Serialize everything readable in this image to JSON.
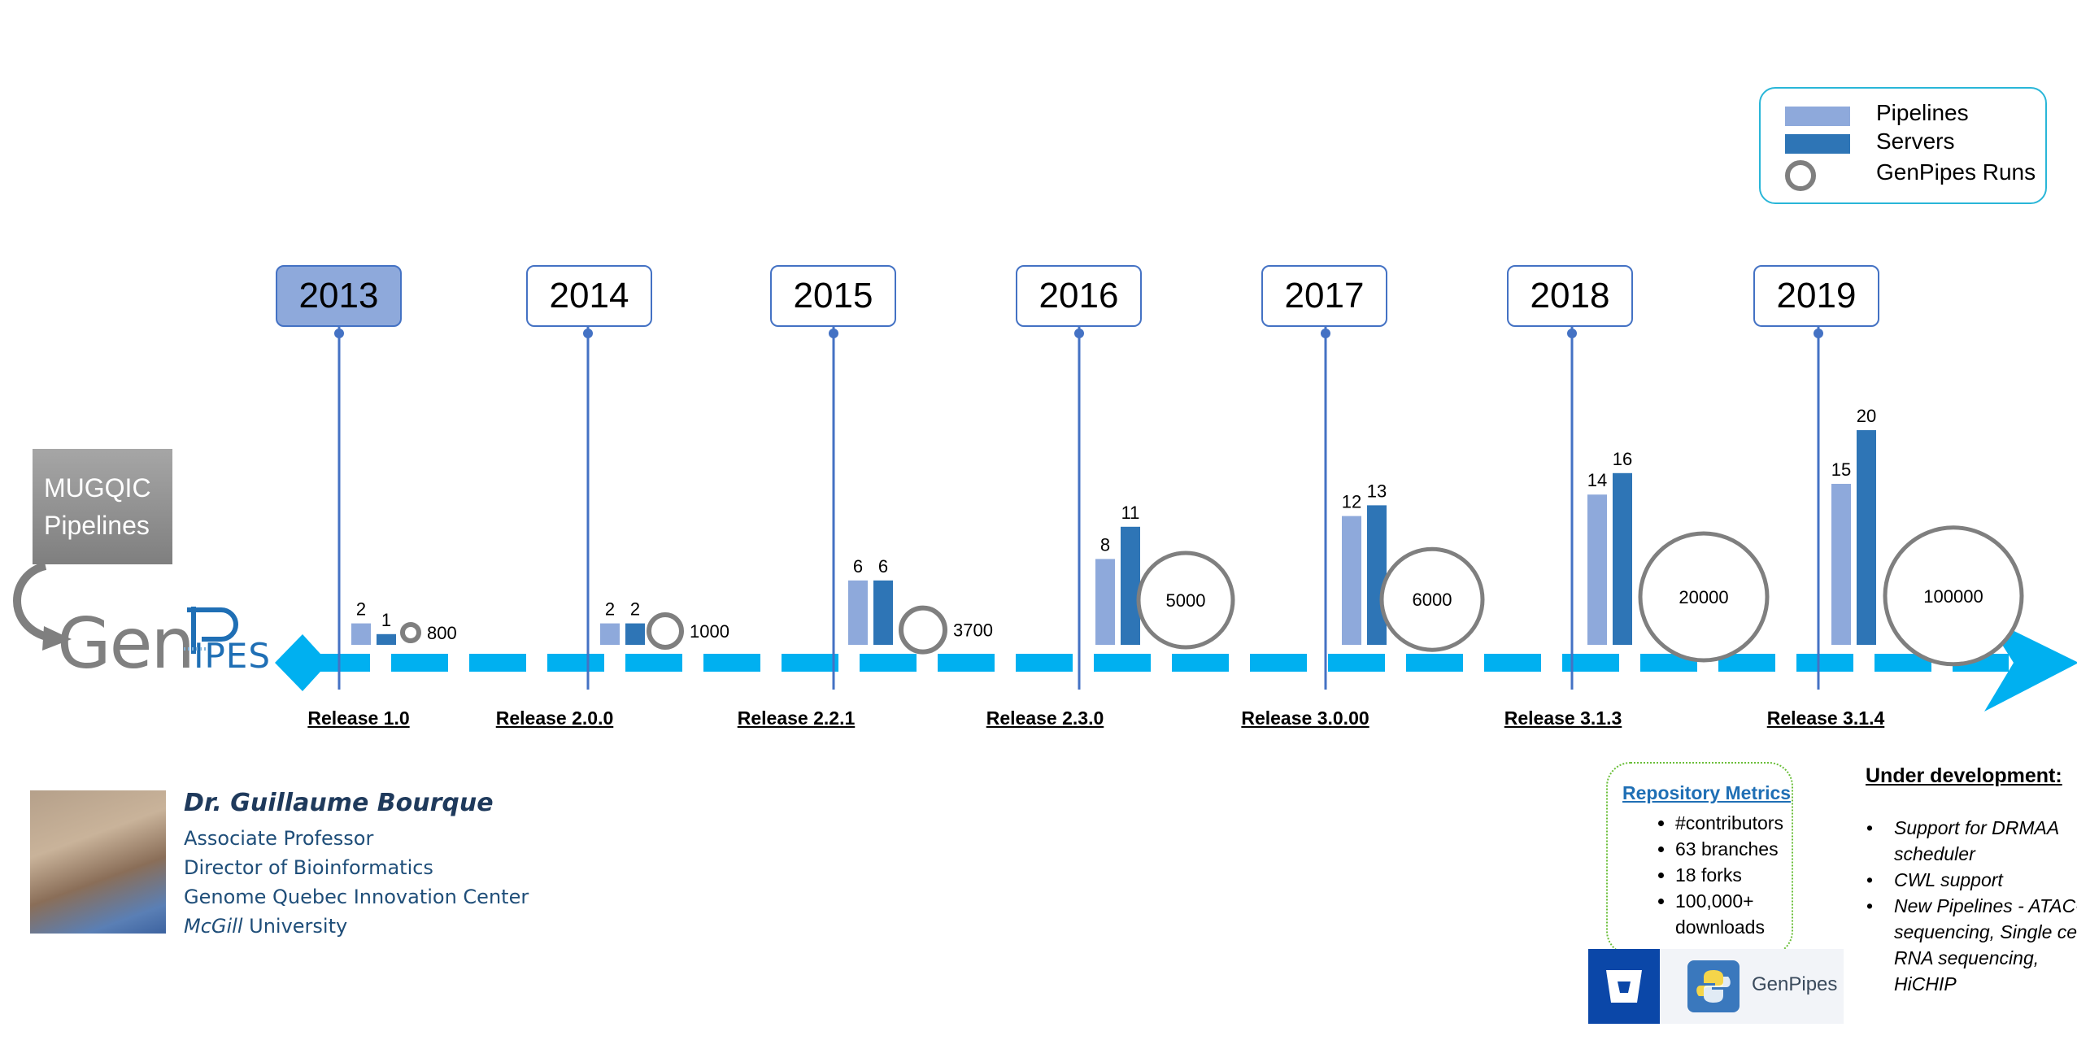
{
  "legend": {
    "pipelines_label": "Pipelines",
    "servers_label": "Servers",
    "runs_label": "GenPipes Runs",
    "pipelines_color": "#8ea9db",
    "servers_color": "#2e75b6",
    "runs_color": "#7f7f7f"
  },
  "mugqic": {
    "line1": "MUGQIC",
    "line2": "Pipelines"
  },
  "logo": {
    "gen": "Gen",
    "ipes": "IPES"
  },
  "timeline_color": "#00b0f0",
  "chart_data": {
    "type": "bar",
    "categories": [
      "2013",
      "2014",
      "2015",
      "2016",
      "2017",
      "2018",
      "2019"
    ],
    "releases": [
      "Release 1.0",
      "Release 2.0.0",
      "Release 2.2.1",
      "Release 2.3.0",
      "Release 3.0.00",
      "Release 3.1.3",
      "Release 3.1.4"
    ],
    "series": [
      {
        "name": "Pipelines",
        "values": [
          2,
          2,
          6,
          8,
          12,
          14,
          15
        ]
      },
      {
        "name": "Servers",
        "values": [
          1,
          2,
          6,
          11,
          13,
          16,
          20
        ]
      },
      {
        "name": "GenPipes Runs",
        "values": [
          800,
          1000,
          3700,
          5000,
          6000,
          20000,
          100000
        ]
      }
    ],
    "highlighted_year": "2013"
  },
  "profile": {
    "name": "Dr. Guillaume Bourque",
    "lines": [
      "Associate Professor",
      "Director of Bioinformatics",
      "Genome Quebec Innovation Center"
    ],
    "univ_italic": "McGill",
    "univ_rest": " University"
  },
  "repo": {
    "title": "Repository Metrics",
    "items": [
      "#contributors",
      "63 branches",
      "18 forks",
      "100,000+ downloads"
    ]
  },
  "badge": {
    "label": "GenPipes"
  },
  "development": {
    "title": "Under development:",
    "items": [
      "Support for DRMAA scheduler",
      "CWL support",
      "New Pipelines - ATAC-sequencing, Single cell RNA sequencing, HiCHIP"
    ]
  }
}
